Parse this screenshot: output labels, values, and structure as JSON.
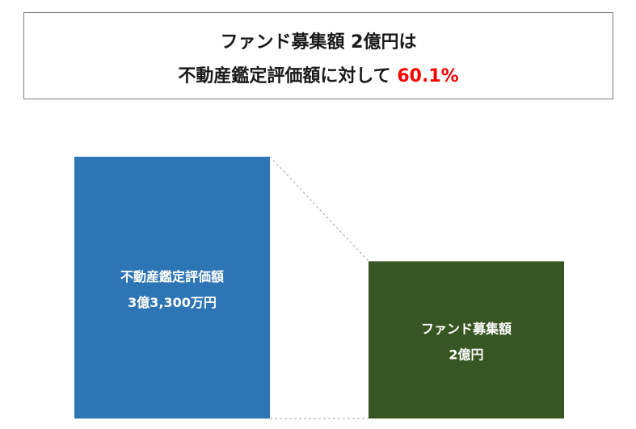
{
  "headline": {
    "line1": "ファンド募集額 2億円は",
    "line2_prefix": "不動産鑑定評価額に対して ",
    "line2_highlight": "60.1%"
  },
  "chart_data": {
    "type": "bar",
    "unit": "億円",
    "bars": [
      {
        "category": "不動産鑑定評価額",
        "value_label": "3億3,300万円",
        "value": 3.33,
        "color": "#2e75b6"
      },
      {
        "category": "ファンド募集額",
        "value_label": "2億円",
        "value": 2.0,
        "color": "#375623"
      }
    ],
    "connector_color": "#a6a6a6",
    "grid": false,
    "legend": "none"
  }
}
